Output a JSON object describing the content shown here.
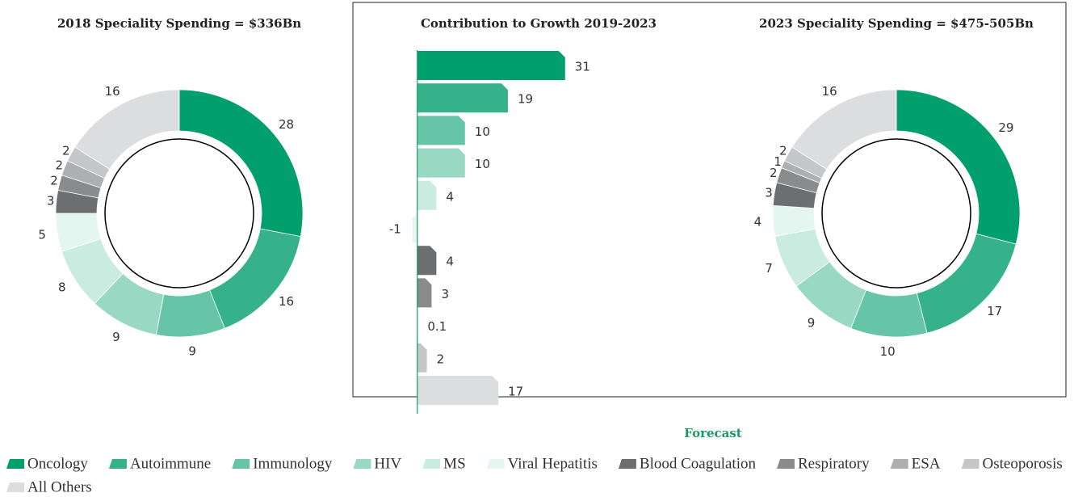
{
  "chart_data": [
    {
      "type": "pie",
      "title": "2018 Speciality Spending = $336Bn",
      "categories": [
        "Oncology",
        "Autoimmune",
        "Immunology",
        "HIV",
        "MS",
        "Viral Hepatitis",
        "Blood Coagulation",
        "Respiratory",
        "ESA",
        "Osteoporosis",
        "All Others"
      ],
      "values": [
        28,
        16,
        9,
        9,
        8,
        5,
        3,
        2,
        2,
        2,
        16
      ],
      "colors": [
        "#009f6b",
        "#36b28a",
        "#66c5a6",
        "#99d8c3",
        "#c9ebe0",
        "#e5f5ef",
        "#6d6e70",
        "#8a8b8d",
        "#aeafb1",
        "#c5c6c8",
        "#dcdddf"
      ]
    },
    {
      "type": "barh",
      "title": "Contribution to Growth 2019-2023",
      "annotation": "Forecast",
      "categories": [
        "Oncology",
        "Autoimmune",
        "Immunology",
        "HIV",
        "MS",
        "Viral Hepatitis",
        "Blood Coagulation",
        "Respiratory",
        "ESA",
        "Osteoporosis",
        "All Others"
      ],
      "values": [
        31,
        19,
        10,
        10,
        4,
        -1,
        4,
        3,
        0.1,
        2,
        17
      ],
      "xlim": [
        -13,
        50
      ],
      "colors": [
        "#009f6b",
        "#36b28a",
        "#66c5a6",
        "#99d8c3",
        "#c9ebe0",
        "#e5f5ef",
        "#6d6e70",
        "#8a8b8d",
        "#aeafb1",
        "#c5c6c8",
        "#dcdddf"
      ]
    },
    {
      "type": "pie",
      "title": "2023 Speciality Spending = $475-505Bn",
      "categories": [
        "Oncology",
        "Autoimmune",
        "Immunology",
        "HIV",
        "MS",
        "Viral Hepatitis",
        "Blood Coagulation",
        "Respiratory",
        "ESA",
        "Osteoporosis",
        "All Others"
      ],
      "values": [
        29,
        17,
        10,
        9,
        7,
        4,
        3,
        2,
        1,
        2,
        16
      ],
      "colors": [
        "#009f6b",
        "#36b28a",
        "#66c5a6",
        "#99d8c3",
        "#c9ebe0",
        "#e5f5ef",
        "#6d6e70",
        "#8a8b8d",
        "#aeafb1",
        "#c5c6c8",
        "#dcdddf"
      ]
    }
  ]
}
